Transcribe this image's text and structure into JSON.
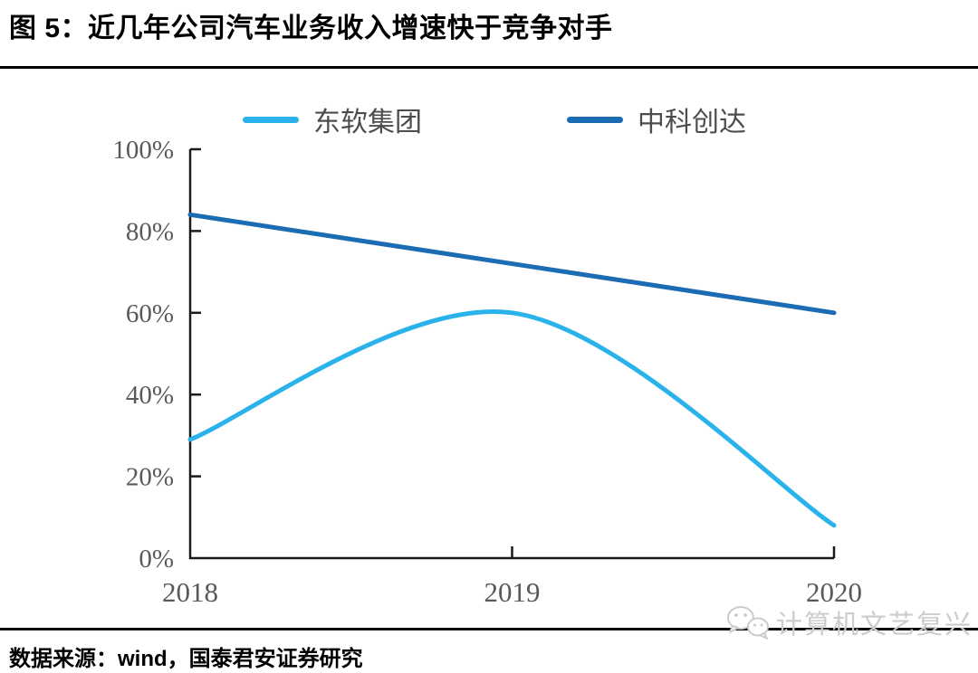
{
  "header": {
    "title": "图 5：近几年公司汽车业务收入增速快于竞争对手"
  },
  "chart_data": {
    "type": "line",
    "title": "图 5：近几年公司汽车业务收入增速快于竞争对手",
    "categories": [
      "2018",
      "2019",
      "2020"
    ],
    "series": [
      {
        "name": "东软集团",
        "color": "#2AB3EA",
        "values": [
          29,
          60,
          8
        ]
      },
      {
        "name": "中科创达",
        "color": "#1C6CB4",
        "values": [
          84,
          72,
          60
        ]
      }
    ],
    "xlabel": "",
    "ylabel": "",
    "ylim": [
      0,
      100
    ],
    "y_ticks": [
      0,
      20,
      40,
      60,
      80,
      100
    ],
    "y_tick_suffix": "%",
    "grid": false,
    "legend_position": "top",
    "line_smooth": true,
    "axis_color": "#1a1a1a",
    "tick_label_color": "#595959"
  },
  "footer": {
    "source": "数据来源：wind，国泰君安证券研究",
    "watermark": "计算机文艺复兴"
  }
}
